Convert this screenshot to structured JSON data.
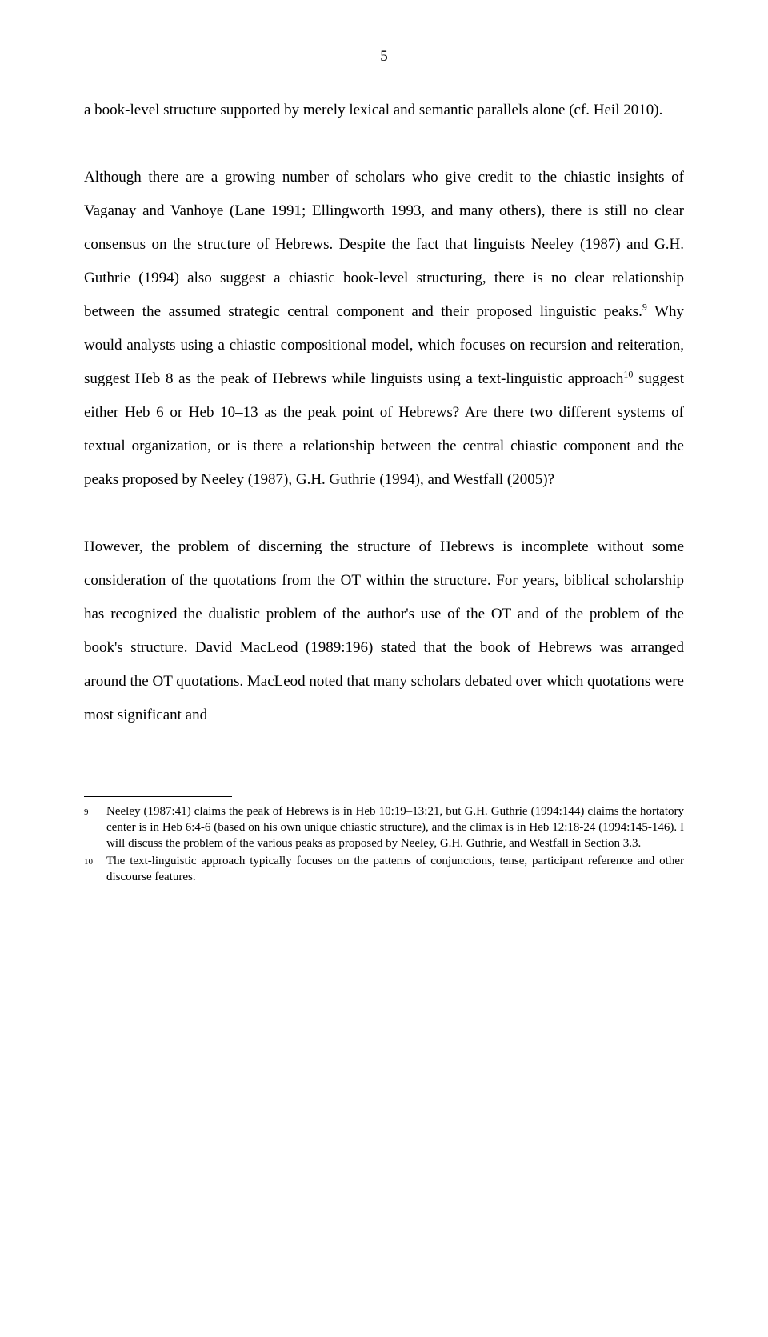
{
  "page": {
    "number": "5"
  },
  "paragraphs": {
    "p1_part1": "a book-level structure supported by merely lexical and semantic parallels alone (cf. Heil 2010).",
    "p2_part1": "Although there are a growing number of scholars who give credit to the chiastic insights of Vaganay and Vanhoye (Lane 1991; Ellingworth 1993, and many others), there is still no clear consensus on the structure of Hebrews. Despite the fact that linguists Neeley (1987) and G.H. Guthrie (1994) also suggest a chiastic book-level structuring, there is no clear relationship between the assumed strategic central component and their proposed linguistic peaks.",
    "p2_sup1": "9",
    "p2_part2": " Why would analysts using a chiastic compositional model, which focuses on recursion and reiteration, suggest Heb 8 as the peak of Hebrews while linguists using a text-linguistic approach",
    "p2_sup2": "10",
    "p2_part3": " suggest either Heb 6 or Heb 10–13 as the peak point of Hebrews? Are there two different systems of textual organization, or is there a relationship between the central chiastic component and the peaks proposed by Neeley (1987), G.H. Guthrie (1994), and Westfall (2005)?",
    "p3_part1": "However, the problem of discerning the structure of Hebrews is incomplete without some consideration of the quotations from the OT within the structure. For years, biblical scholarship has recognized the dualistic problem of the author's use of the OT and of the problem of the book's structure. David MacLeod (1989:196) stated that the book of Hebrews was arranged around the OT quotations. MacLeod noted that many scholars debated over which quotations were most significant and"
  },
  "footnotes": {
    "fn9": {
      "num": "9",
      "text": "Neeley (1987:41) claims the peak of Hebrews is in Heb 10:19–13:21, but G.H. Guthrie (1994:144) claims the hortatory center is in Heb 6:4-6 (based on his own unique chiastic structure), and the climax is in Heb 12:18-24 (1994:145-146). I will discuss the problem of the various peaks as proposed by Neeley, G.H. Guthrie, and Westfall in Section 3.3."
    },
    "fn10": {
      "num": "10",
      "text": "The text-linguistic approach typically focuses on the patterns of conjunctions, tense, participant reference and other discourse features."
    }
  }
}
